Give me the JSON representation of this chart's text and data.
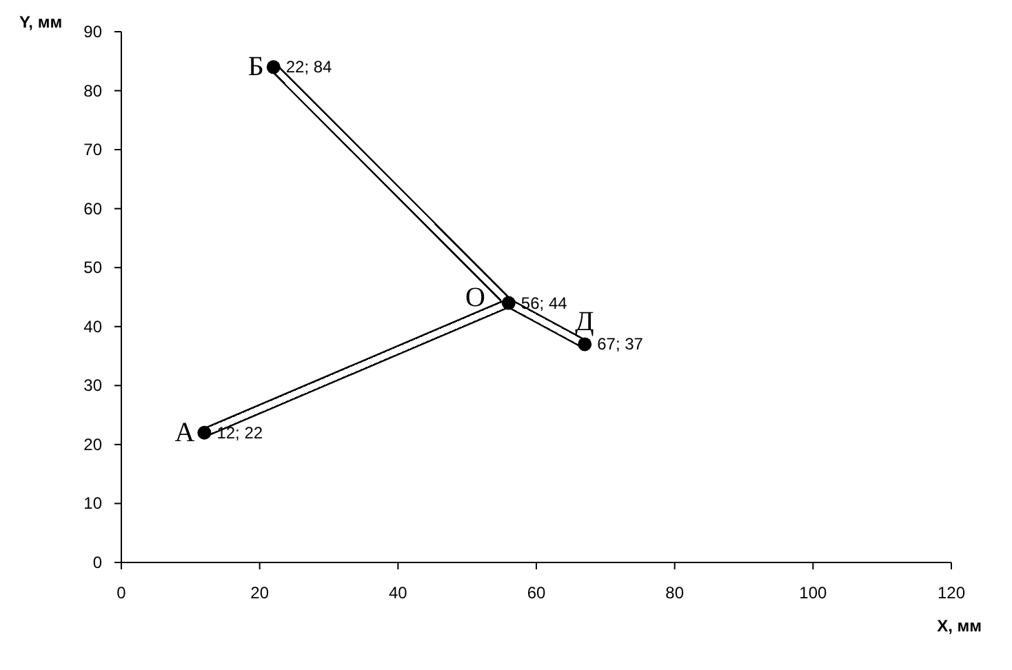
{
  "chart_data": {
    "type": "scatter",
    "xlabel": "X, мм",
    "ylabel": "Y, мм",
    "xlim": [
      0,
      120
    ],
    "xticks": [
      0,
      20,
      40,
      60,
      80,
      100,
      120
    ],
    "ylim": [
      0,
      90
    ],
    "yticks": [
      0,
      10,
      20,
      30,
      40,
      50,
      60,
      70,
      80,
      90
    ],
    "grid": false,
    "marker": "circle",
    "series": [
      {
        "type": "line",
        "marker": "none",
        "color": "#000000",
        "x": [
          12,
          56
        ],
        "values": [
          22,
          44
        ]
      },
      {
        "type": "line",
        "marker": "none",
        "color": "#000000",
        "x": [
          22,
          56
        ],
        "values": [
          84,
          44
        ]
      },
      {
        "type": "line",
        "marker": "none",
        "color": "#000000",
        "x": [
          56,
          67
        ],
        "values": [
          44,
          37
        ]
      },
      {
        "color": "#000000",
        "x": [
          12,
          22,
          56,
          67
        ],
        "values": [
          22,
          84,
          44,
          37
        ],
        "value_labels": [
          "12; 22",
          "22; 84",
          "56; 44",
          "67; 37"
        ]
      }
    ],
    "annotations": [
      {
        "text": "А",
        "x": 12,
        "y": 22
      },
      {
        "text": "Б",
        "x": 22,
        "y": 84
      },
      {
        "text": "О",
        "x": 56,
        "y": 44
      },
      {
        "text": "Д",
        "x": 67,
        "y": 37
      }
    ]
  }
}
